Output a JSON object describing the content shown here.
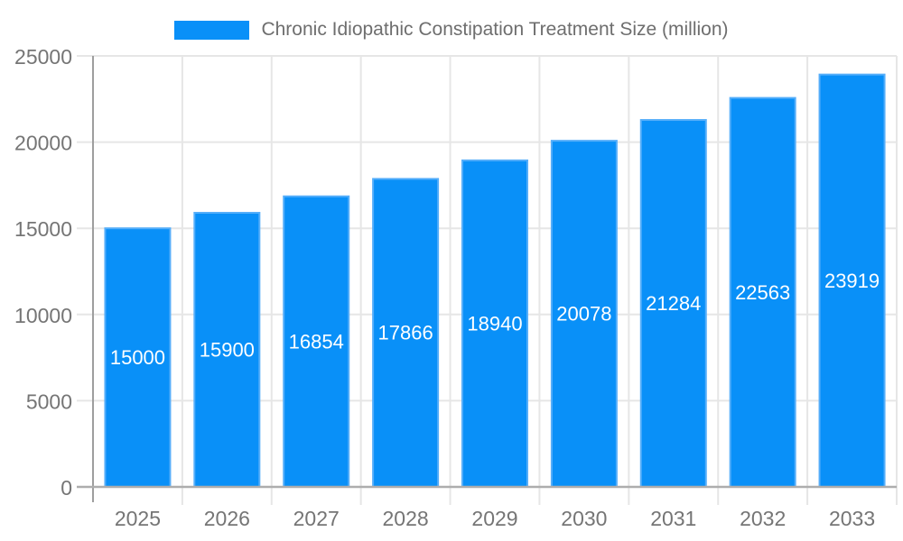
{
  "chart_data": {
    "type": "bar",
    "title": "Chronic Idiopathic Constipation Treatment Size (million)",
    "categories": [
      "2025",
      "2026",
      "2027",
      "2028",
      "2029",
      "2030",
      "2031",
      "2032",
      "2033"
    ],
    "values": [
      15000,
      15900,
      16854,
      17866,
      18940,
      20078,
      21284,
      22563,
      23919
    ],
    "xlabel": "",
    "ylabel": "",
    "ylim": [
      0,
      25000
    ],
    "yticks": [
      0,
      5000,
      10000,
      15000,
      20000,
      25000
    ],
    "grid": true,
    "legend_position": "top",
    "bar_labels_visible": true
  },
  "colors": {
    "bar_fill": "#0990f8",
    "bar_edge": "#55aefa",
    "grid": "#e6e6e6",
    "y_axis_line": "#9e9e9e",
    "zero_line": "#adadad",
    "axis_label": "#757575",
    "bar_label": "#ffffff",
    "legend_text": "#6e6e6e",
    "background": "#ffffff"
  }
}
